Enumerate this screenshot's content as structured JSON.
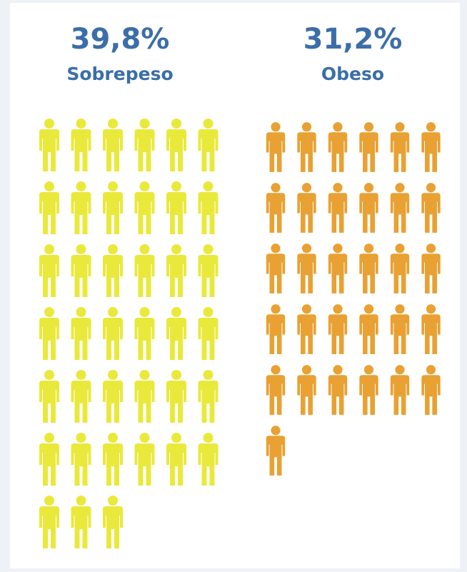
{
  "chart_data": {
    "type": "pictogram",
    "categories": [
      "Sobrepeso",
      "Obeso"
    ],
    "values": [
      39.8,
      31.2
    ],
    "value_labels": [
      "39,8%",
      "31,2%"
    ],
    "colors": [
      "#e9e93c",
      "#e8a132"
    ]
  }
}
